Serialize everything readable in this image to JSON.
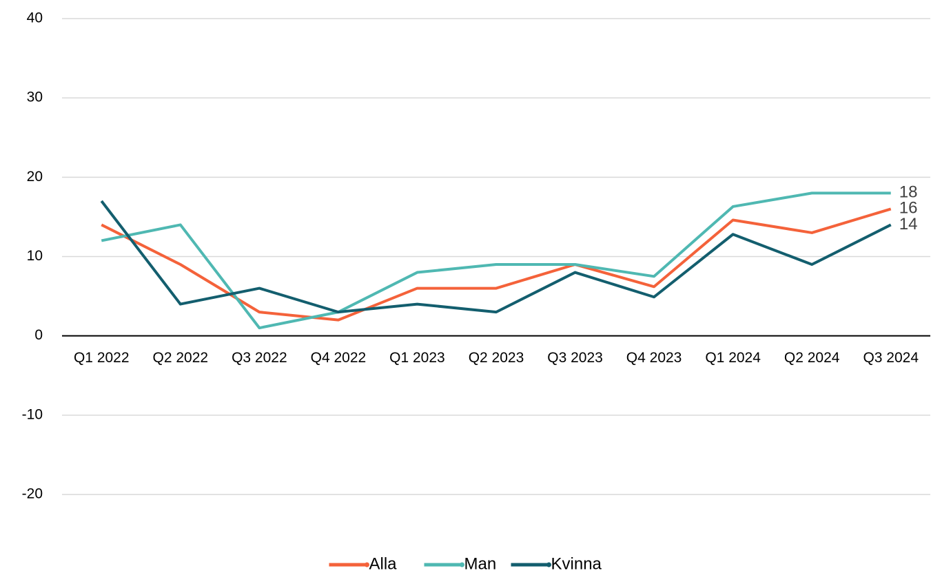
{
  "chart_data": {
    "type": "line",
    "categories": [
      "Q1 2022",
      "Q2 2022",
      "Q3 2022",
      "Q4 2022",
      "Q1 2023",
      "Q2 2023",
      "Q3 2023",
      "Q4 2023",
      "Q1 2024",
      "Q2 2024",
      "Q3 2024"
    ],
    "series": [
      {
        "name": "Alla",
        "color": "#f4623a",
        "values": [
          14,
          9,
          3,
          2,
          6,
          6,
          9,
          6.2,
          14.6,
          13,
          16
        ]
      },
      {
        "name": "Man",
        "color": "#4fb8b2",
        "values": [
          12,
          14,
          1,
          3,
          8,
          9,
          9,
          7.5,
          16.3,
          18,
          18
        ]
      },
      {
        "name": "Kvinna",
        "color": "#135e6e",
        "values": [
          17,
          4,
          6,
          3,
          4,
          3,
          8,
          4.9,
          12.8,
          9,
          14
        ]
      }
    ],
    "ylim": [
      -20,
      40
    ],
    "yticks": [
      -20,
      -10,
      0,
      10,
      20,
      30,
      40
    ],
    "grid": true,
    "legend": "bottom"
  }
}
